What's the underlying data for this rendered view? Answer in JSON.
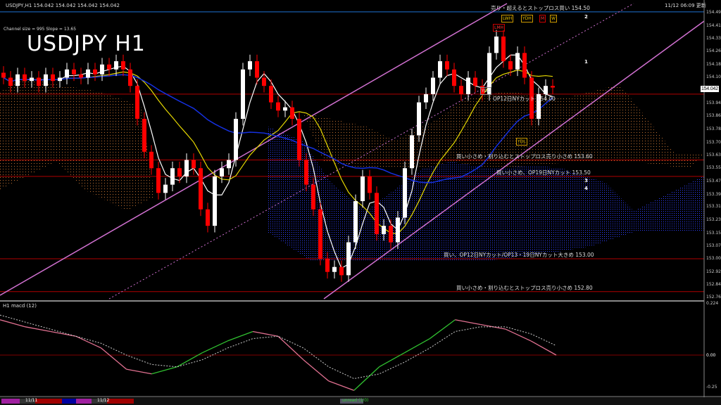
{
  "header": {
    "symbol_info": "USDJPY,H1  154.042 154.042 154.042 154.042",
    "channel_info": "Channel size = 995 Slope = 13.65",
    "title": "USDJPY H1",
    "updated": "11/12 06:09 更新"
  },
  "price_axis": [
    "154.495",
    "154.415",
    "154.335",
    "154.260",
    "154.180",
    "154.100",
    "153.945",
    "153.865",
    "153.785",
    "153.705",
    "153.630",
    "153.550",
    "153.470",
    "153.390",
    "153.315",
    "153.235",
    "153.155",
    "153.075",
    "153.000",
    "152.920",
    "152.840",
    "152.765"
  ],
  "current_price": "154.042",
  "levels": [
    {
      "price": 154.5,
      "label": "売り・超えるとストップロス買い 154.50",
      "color": "#1e6fd0"
    },
    {
      "price": 154.0,
      "label": "OP12日NYカット 154.00",
      "color": "#b00000"
    },
    {
      "price": 153.6,
      "label": "買い小さめ・割り込むとストップロス売り小さめ 153.60",
      "color": "#b00000"
    },
    {
      "price": 153.5,
      "label": "買い小さめ、OP19日NYカット 153.50",
      "color": "#b00000"
    },
    {
      "price": 153.0,
      "label": "買い、OP12日NYカット/OP13・19日NYカット大きめ 153.00",
      "color": "#b00000"
    },
    {
      "price": 152.8,
      "label": "買い小さめ・割り込むとストップロス売り小さめ 152.80",
      "color": "#b00000"
    }
  ],
  "markers": [
    "1",
    "2",
    "3",
    "4"
  ],
  "box_labels": [
    "LWH",
    "YDH",
    "M",
    "W",
    "LMH",
    "YDC",
    "YDL"
  ],
  "macd": {
    "label": "H1  macd (12)",
    "axis": [
      "0.224",
      "0.00",
      "-0.25"
    ]
  },
  "timeline": {
    "dates": [
      "11/11",
      "11/12"
    ],
    "status": "unread (1/0)"
  },
  "chart_data": {
    "type": "candlestick",
    "symbol": "USDJPY",
    "timeframe": "H1",
    "ylim": [
      152.765,
      154.53
    ],
    "closes": [
      154.1,
      154.05,
      154.12,
      154.08,
      154.1,
      154.05,
      154.12,
      154.08,
      154.1,
      154.15,
      154.12,
      154.1,
      154.15,
      154.12,
      154.18,
      154.15,
      154.2,
      154.15,
      154.05,
      153.85,
      153.65,
      153.55,
      153.4,
      153.45,
      153.55,
      153.5,
      153.6,
      153.55,
      153.3,
      153.2,
      153.5,
      153.55,
      153.6,
      153.85,
      154.15,
      154.2,
      154.1,
      154.05,
      153.95,
      153.9,
      153.92,
      153.85,
      153.6,
      153.45,
      153.3,
      153.0,
      152.92,
      152.95,
      152.9,
      153.1,
      153.35,
      153.5,
      153.4,
      153.15,
      153.2,
      153.1,
      153.25,
      153.55,
      153.75,
      153.95,
      154.0,
      154.1,
      154.2,
      154.15,
      154.05,
      154.0,
      154.1,
      154.05,
      154.0,
      154.25,
      154.35,
      154.2,
      154.15,
      154.25,
      154.1,
      153.85,
      154.0,
      154.05,
      154.04
    ],
    "macd_ylim": [
      -0.25,
      0.224
    ],
    "macd_main": [
      0.15,
      0.12,
      0.1,
      0.08,
      0.03,
      -0.06,
      -0.08,
      -0.05,
      0.01,
      0.06,
      0.1,
      0.08,
      -0.02,
      -0.11,
      -0.15,
      -0.05,
      0.01,
      0.07,
      0.15,
      0.13,
      0.11,
      0.06,
      0.0
    ],
    "macd_signal": [
      0.17,
      0.14,
      0.11,
      0.08,
      0.05,
      0.0,
      -0.04,
      -0.05,
      -0.02,
      0.03,
      0.07,
      0.08,
      0.03,
      -0.05,
      -0.1,
      -0.08,
      -0.03,
      0.03,
      0.1,
      0.12,
      0.12,
      0.09,
      0.04
    ],
    "colors": {
      "bull": "#ffffff",
      "bear": "#ff0000",
      "ma_fast": "#ffffff",
      "ma_mid": "#e6d800",
      "ma_slow": "#1530e0",
      "channel": "#d070d0",
      "macd_up": "#30c030",
      "macd_down": "#e07090"
    }
  }
}
